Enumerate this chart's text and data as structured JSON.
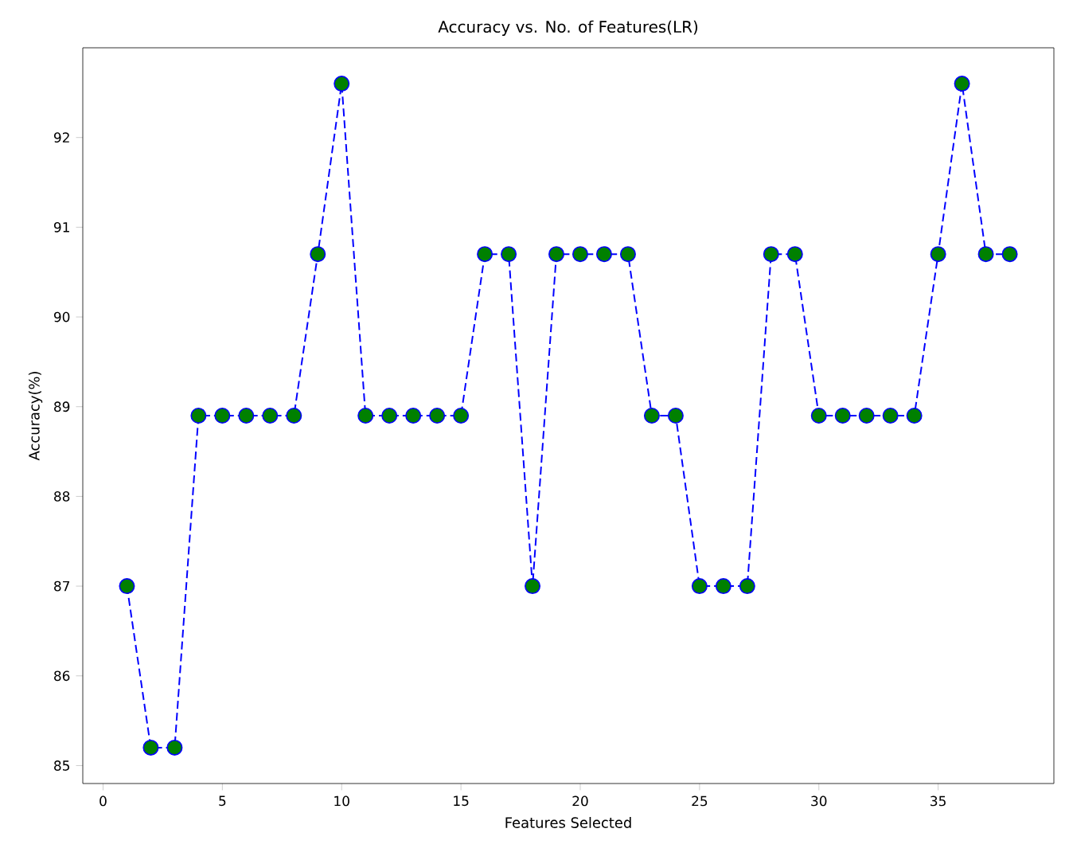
{
  "chart_data": {
    "type": "line",
    "title": "Accuracy vs. No. of Features(LR)",
    "xlabel": "Features Selected",
    "ylabel": "Accuracy(%)",
    "x": [
      1,
      2,
      3,
      4,
      5,
      6,
      7,
      8,
      9,
      10,
      11,
      12,
      13,
      14,
      15,
      16,
      17,
      18,
      19,
      20,
      21,
      22,
      23,
      24,
      25,
      26,
      27,
      28,
      29,
      30,
      31,
      32,
      33,
      34,
      35,
      36,
      37,
      38
    ],
    "series": [
      {
        "color": "#0000ff",
        "values": [
          87.0,
          85.2,
          85.2,
          88.9,
          88.9,
          88.9,
          88.9,
          88.9,
          90.7,
          92.6,
          88.9,
          88.9,
          88.9,
          88.9,
          88.9,
          90.7,
          90.7,
          87.0,
          90.7,
          90.7,
          90.7,
          90.7,
          88.9,
          88.9,
          87.0,
          87.0,
          87.0,
          90.7,
          90.7,
          88.9,
          88.9,
          88.9,
          88.9,
          88.9,
          90.7,
          92.6,
          90.7,
          90.7
        ],
        "colors": [
          "#008000",
          "#008000",
          "#008000",
          "#008000",
          "#008000",
          "#008000",
          "#008000",
          "#008000",
          "#008000",
          "#008000",
          "#008000",
          "#008000",
          "#008000",
          "#008000",
          "#008000",
          "#008000",
          "#008000",
          "#008000",
          "#008000",
          "#008000",
          "#008000",
          "#008000",
          "#008000",
          "#008000",
          "#008000",
          "#008000",
          "#008000",
          "#008000",
          "#008000",
          "#008000",
          "#008000",
          "#008000",
          "#008000",
          "#008000",
          "#008000",
          "#008000",
          "#008000",
          "#008000"
        ]
      }
    ],
    "xlim": [
      -0.85,
      39.85
    ],
    "ylim": [
      84.8,
      93.0
    ],
    "xticks": [
      0,
      5,
      10,
      15,
      20,
      25,
      30,
      35
    ],
    "yticks": [
      85,
      86,
      87,
      88,
      89,
      90,
      91,
      92
    ],
    "marker": "circle",
    "line_style": "dashed",
    "grid": false
  }
}
